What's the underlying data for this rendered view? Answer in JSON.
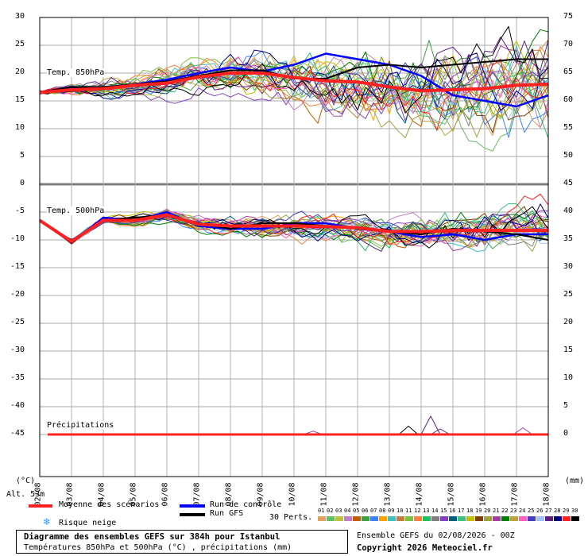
{
  "chart_data": {
    "type": "line",
    "title": "Diagramme des ensembles GEFS sur 384h pour Istanbul",
    "subtitle": "Températures 850hPa et 500hPa (°C) , précipitations (mm)",
    "run_info": "Ensemble GEFS du 02/08/2026 - 00Z",
    "copyright": "Copyright 2026 Meteociel.fr",
    "altitude": "Alt. 53m",
    "left_axis_unit": "(°C)",
    "right_axis_unit": "(mm)",
    "left_ticks": [
      "30",
      "25",
      "20",
      "15",
      "10",
      "5",
      "0",
      "-5",
      "-10",
      "-15",
      "-20",
      "-25",
      "-30",
      "-35",
      "-40",
      "-45"
    ],
    "right_ticks": [
      "75",
      "70",
      "65",
      "60",
      "55",
      "50",
      "45",
      "40",
      "35",
      "30",
      "25",
      "20",
      "15",
      "10",
      "5",
      "0"
    ],
    "x_ticks": [
      "02/08",
      "03/08",
      "04/08",
      "05/08",
      "06/08",
      "07/08",
      "08/08",
      "09/08",
      "10/08",
      "11/08",
      "12/08",
      "13/08",
      "14/08",
      "15/08",
      "16/08",
      "17/08",
      "18/08"
    ],
    "panel_labels": {
      "t850": "Temp. 850hPa",
      "t500": "Temp. 500hPa",
      "precip": "Précipitations"
    },
    "legend": {
      "mean": "Moyenne des scénarios",
      "control": "Run de contrôle",
      "gfs": "Run GFS",
      "snow": "Risque neige",
      "perts": "30 Perts.",
      "member_ids": [
        "01",
        "02",
        "03",
        "04",
        "05",
        "06",
        "07",
        "08",
        "09",
        "10",
        "11",
        "12",
        "13",
        "14",
        "15",
        "16",
        "17",
        "18",
        "19",
        "20",
        "21",
        "22",
        "23",
        "24",
        "25",
        "26",
        "27",
        "28",
        "29",
        "30"
      ],
      "member_colors": [
        "#e0a060",
        "#60c060",
        "#c0c040",
        "#c080c0",
        "#c06000",
        "#40a040",
        "#4080ff",
        "#ffa000",
        "#40c0c0",
        "#c08040",
        "#80c040",
        "#ff8040",
        "#20c060",
        "#808080",
        "#8040c0",
        "#006080",
        "#40c080",
        "#c0c000",
        "#804000",
        "#a0a040",
        "#a040a0",
        "#008000",
        "#c0a040",
        "#ff60c0",
        "#4040c0",
        "#a0c0ff",
        "#602080",
        "#000080",
        "#ff2020",
        "#000000"
      ]
    },
    "x_days": [
      0,
      1,
      2,
      3,
      4,
      5,
      6,
      7,
      8,
      9,
      10,
      11,
      12,
      13,
      14,
      15,
      16
    ],
    "t850": {
      "mean": [
        16.5,
        17.0,
        17.2,
        17.8,
        18.2,
        19.3,
        20.0,
        20.0,
        19.2,
        18.6,
        18.4,
        17.5,
        16.8,
        17.0,
        17.2,
        17.8,
        18.0
      ],
      "control": [
        16.5,
        17.5,
        17.2,
        18.0,
        18.8,
        20.0,
        21.0,
        20.3,
        21.5,
        23.5,
        22.5,
        21.5,
        19.5,
        16.0,
        15.0,
        14.0,
        16.0
      ],
      "gfs": [
        16.5,
        17.5,
        17.5,
        18.0,
        18.5,
        19.5,
        20.5,
        20.5,
        19.0,
        19.0,
        21.0,
        21.5,
        21.0,
        21.5,
        22.0,
        22.5,
        22.5
      ]
    },
    "t500": {
      "mean": [
        -6.5,
        -10.3,
        -6.5,
        -6.5,
        -5.5,
        -7.2,
        -7.5,
        -7.5,
        -7.5,
        -7.6,
        -7.8,
        -8.5,
        -8.5,
        -8.3,
        -8.3,
        -8.3,
        -8.3
      ],
      "control": [
        -6.5,
        -10.5,
        -6.0,
        -6.5,
        -5.0,
        -7.5,
        -8.0,
        -8.0,
        -7.0,
        -7.0,
        -8.0,
        -8.5,
        -9.5,
        -9.0,
        -10.0,
        -9.0,
        -9.0
      ],
      "gfs": [
        -6.5,
        -10.5,
        -6.5,
        -6.0,
        -5.5,
        -7.0,
        -8.0,
        -7.0,
        -7.0,
        -7.5,
        -8.0,
        -8.5,
        -9.0,
        -8.0,
        -8.5,
        -9.0,
        -10.0
      ]
    },
    "precip": {
      "mean": [
        0,
        0,
        0,
        0,
        0,
        0,
        0,
        0,
        0,
        0,
        0,
        0,
        0,
        0,
        0,
        0,
        0
      ],
      "spikes": [
        {
          "day": 8.6,
          "value": 0.6,
          "color": "#a040a0"
        },
        {
          "day": 11.6,
          "value": 1.5,
          "color": "#000000"
        },
        {
          "day": 12.3,
          "value": 3.3,
          "color": "#602080"
        },
        {
          "day": 12.6,
          "value": 1.0,
          "color": "#602080"
        },
        {
          "day": 15.2,
          "value": 1.2,
          "color": "#a040a0"
        }
      ]
    }
  }
}
